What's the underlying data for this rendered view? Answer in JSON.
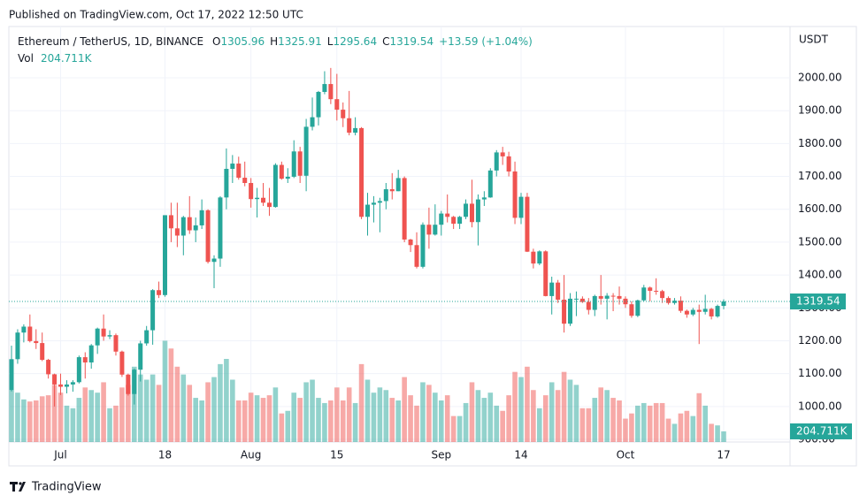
{
  "published": "Published on TradingView.com, Oct 17, 2022 12:50 UTC",
  "brand": "TradingView",
  "chart_data": {
    "type": "candlestick",
    "symbol": "Ethereum / TetherUS, 1D, BINANCE",
    "ohlc_letters": [
      "O",
      "H",
      "L",
      "C"
    ],
    "change_label": "+13.59 (+1.04%)",
    "volume_title": "Vol",
    "volume_label": "204.711K",
    "currency": "USDT",
    "up_color": "#26a69a",
    "down_color": "#ef5350",
    "dates": [
      "2022-06-23",
      "2022-06-24",
      "2022-06-25",
      "2022-06-26",
      "2022-06-27",
      "2022-06-28",
      "2022-06-29",
      "2022-06-30",
      "2022-07-01",
      "2022-07-02",
      "2022-07-03",
      "2022-07-04",
      "2022-07-05",
      "2022-07-06",
      "2022-07-07",
      "2022-07-08",
      "2022-07-09",
      "2022-07-10",
      "2022-07-11",
      "2022-07-12",
      "2022-07-13",
      "2022-07-14",
      "2022-07-15",
      "2022-07-16",
      "2022-07-17",
      "2022-07-18",
      "2022-07-19",
      "2022-07-20",
      "2022-07-21",
      "2022-07-22",
      "2022-07-23",
      "2022-07-24",
      "2022-07-25",
      "2022-07-26",
      "2022-07-27",
      "2022-07-28",
      "2022-07-29",
      "2022-07-30",
      "2022-07-31",
      "2022-08-01",
      "2022-08-02",
      "2022-08-03",
      "2022-08-04",
      "2022-08-05",
      "2022-08-06",
      "2022-08-07",
      "2022-08-08",
      "2022-08-09",
      "2022-08-10",
      "2022-08-11",
      "2022-08-12",
      "2022-08-13",
      "2022-08-14",
      "2022-08-15",
      "2022-08-16",
      "2022-08-17",
      "2022-08-18",
      "2022-08-19",
      "2022-08-20",
      "2022-08-21",
      "2022-08-22",
      "2022-08-23",
      "2022-08-24",
      "2022-08-25",
      "2022-08-26",
      "2022-08-27",
      "2022-08-28",
      "2022-08-29",
      "2022-08-30",
      "2022-08-31",
      "2022-09-01",
      "2022-09-02",
      "2022-09-03",
      "2022-09-04",
      "2022-09-05",
      "2022-09-06",
      "2022-09-07",
      "2022-09-08",
      "2022-09-09",
      "2022-09-10",
      "2022-09-11",
      "2022-09-12",
      "2022-09-13",
      "2022-09-14",
      "2022-09-15",
      "2022-09-16",
      "2022-09-17",
      "2022-09-18",
      "2022-09-19",
      "2022-09-20",
      "2022-09-21",
      "2022-09-22",
      "2022-09-23",
      "2022-09-24",
      "2022-09-25",
      "2022-09-26",
      "2022-09-27",
      "2022-09-28",
      "2022-09-29",
      "2022-09-30",
      "2022-10-01",
      "2022-10-02",
      "2022-10-03",
      "2022-10-04",
      "2022-10-05",
      "2022-10-06",
      "2022-10-07",
      "2022-10-08",
      "2022-10-09",
      "2022-10-10",
      "2022-10-11",
      "2022-10-12",
      "2022-10-13",
      "2022-10-14",
      "2022-10-15",
      "2022-10-16",
      "2022-10-17"
    ],
    "open": [
      1050,
      1144,
      1225,
      1243,
      1199,
      1193,
      1142,
      1098,
      1067,
      1060,
      1067,
      1074,
      1150,
      1134,
      1186,
      1237,
      1213,
      1217,
      1167,
      1097,
      1038,
      1112,
      1192,
      1232,
      1354,
      1339,
      1582,
      1542,
      1520,
      1576,
      1536,
      1551,
      1597,
      1440,
      1450,
      1636,
      1723,
      1739,
      1696,
      1680,
      1631,
      1635,
      1620,
      1607,
      1735,
      1693,
      1699,
      1776,
      1702,
      1851,
      1880,
      1957,
      1981,
      1935,
      1903,
      1877,
      1833,
      1847,
      1577,
      1614,
      1620,
      1625,
      1661,
      1655,
      1695,
      1508,
      1491,
      1425,
      1553,
      1523,
      1553,
      1587,
      1577,
      1556,
      1577,
      1617,
      1561,
      1630,
      1636,
      1718,
      1773,
      1761,
      1715,
      1574,
      1638,
      1471,
      1435,
      1472,
      1336,
      1377,
      1325,
      1252,
      1328,
      1328,
      1318,
      1294,
      1336,
      1328,
      1337,
      1336,
      1328,
      1311,
      1276,
      1323,
      1362,
      1352,
      1351,
      1330,
      1315,
      1322,
      1291,
      1280,
      1294,
      1288,
      1297,
      1274,
      1305.96
    ],
    "high": [
      1185,
      1235,
      1250,
      1280,
      1235,
      1225,
      1145,
      1100,
      1100,
      1080,
      1080,
      1155,
      1165,
      1190,
      1240,
      1280,
      1232,
      1222,
      1170,
      1100,
      1115,
      1200,
      1245,
      1357,
      1380,
      1582,
      1620,
      1620,
      1580,
      1640,
      1575,
      1630,
      1600,
      1460,
      1640,
      1785,
      1765,
      1760,
      1745,
      1695,
      1665,
      1680,
      1665,
      1740,
      1745,
      1725,
      1810,
      1790,
      1875,
      1940,
      1960,
      2020,
      2030,
      2012,
      1925,
      1960,
      1880,
      1850,
      1650,
      1640,
      1635,
      1680,
      1710,
      1720,
      1700,
      1510,
      1530,
      1560,
      1605,
      1615,
      1595,
      1645,
      1580,
      1580,
      1630,
      1690,
      1645,
      1655,
      1725,
      1780,
      1790,
      1775,
      1745,
      1650,
      1650,
      1480,
      1475,
      1475,
      1395,
      1385,
      1400,
      1345,
      1350,
      1335,
      1330,
      1340,
      1400,
      1345,
      1345,
      1365,
      1335,
      1320,
      1325,
      1370,
      1365,
      1390,
      1355,
      1335,
      1330,
      1335,
      1295,
      1300,
      1310,
      1340,
      1300,
      1310,
      1325.91
    ],
    "low": [
      1046,
      1130,
      1195,
      1195,
      1175,
      1138,
      1085,
      1000,
      1035,
      1040,
      1045,
      1070,
      1085,
      1115,
      1160,
      1200,
      1205,
      1155,
      1090,
      1033,
      1006,
      1076,
      1185,
      1188,
      1330,
      1334,
      1500,
      1485,
      1460,
      1525,
      1500,
      1540,
      1435,
      1360,
      1425,
      1600,
      1680,
      1690,
      1670,
      1605,
      1575,
      1610,
      1580,
      1605,
      1690,
      1680,
      1695,
      1680,
      1655,
      1840,
      1855,
      1950,
      1920,
      1870,
      1850,
      1825,
      1825,
      1570,
      1520,
      1560,
      1530,
      1600,
      1630,
      1655,
      1500,
      1470,
      1420,
      1420,
      1480,
      1520,
      1520,
      1560,
      1540,
      1540,
      1570,
      1545,
      1490,
      1610,
      1635,
      1700,
      1735,
      1700,
      1555,
      1555,
      1470,
      1420,
      1430,
      1335,
      1280,
      1315,
      1225,
      1245,
      1275,
      1315,
      1280,
      1275,
      1310,
      1265,
      1290,
      1310,
      1300,
      1270,
      1272,
      1320,
      1320,
      1340,
      1315,
      1310,
      1310,
      1285,
      1270,
      1275,
      1190,
      1280,
      1265,
      1270,
      1295.64
    ],
    "close": [
      1144,
      1225,
      1243,
      1199,
      1193,
      1142,
      1098,
      1067,
      1060,
      1067,
      1074,
      1150,
      1134,
      1186,
      1237,
      1213,
      1217,
      1167,
      1097,
      1038,
      1112,
      1192,
      1232,
      1354,
      1339,
      1582,
      1542,
      1520,
      1576,
      1536,
      1551,
      1597,
      1440,
      1450,
      1636,
      1723,
      1739,
      1696,
      1680,
      1631,
      1635,
      1620,
      1607,
      1735,
      1693,
      1699,
      1776,
      1702,
      1851,
      1880,
      1957,
      1981,
      1935,
      1903,
      1877,
      1833,
      1847,
      1577,
      1614,
      1620,
      1625,
      1661,
      1655,
      1695,
      1508,
      1491,
      1425,
      1553,
      1523,
      1553,
      1587,
      1577,
      1556,
      1577,
      1617,
      1561,
      1630,
      1636,
      1718,
      1773,
      1761,
      1715,
      1574,
      1638,
      1471,
      1435,
      1472,
      1336,
      1377,
      1325,
      1252,
      1328,
      1328,
      1318,
      1294,
      1336,
      1328,
      1337,
      1336,
      1328,
      1311,
      1276,
      1323,
      1362,
      1352,
      1351,
      1330,
      1315,
      1322,
      1291,
      1280,
      1294,
      1288,
      1297,
      1274,
      1305.96,
      1319.54
    ],
    "volume": [
      1000,
      950,
      820,
      780,
      800,
      880,
      900,
      1100,
      950,
      700,
      650,
      850,
      1050,
      1000,
      950,
      1150,
      650,
      700,
      1050,
      1100,
      1450,
      1300,
      1200,
      1300,
      1100,
      1950,
      1800,
      1450,
      1300,
      1100,
      850,
      800,
      1150,
      1250,
      1500,
      1600,
      1200,
      800,
      800,
      950,
      900,
      850,
      900,
      1050,
      550,
      600,
      950,
      850,
      1150,
      1200,
      850,
      750,
      800,
      1050,
      800,
      1050,
      750,
      1500,
      1200,
      950,
      1050,
      1000,
      850,
      800,
      1250,
      900,
      700,
      1150,
      1100,
      950,
      800,
      900,
      500,
      500,
      750,
      1150,
      1000,
      850,
      950,
      700,
      600,
      900,
      1350,
      1250,
      1450,
      1000,
      650,
      900,
      1150,
      1000,
      1350,
      1200,
      1100,
      650,
      650,
      850,
      1050,
      1000,
      850,
      800,
      450,
      550,
      700,
      750,
      700,
      750,
      750,
      450,
      350,
      550,
      600,
      500,
      940,
      700,
      350,
      320,
      204.711
    ],
    "volume_lim": [
      0,
      8000
    ],
    "ylim": [
      892,
      2156
    ],
    "yticks": [
      {
        "value": 900,
        "label": "900.00"
      },
      {
        "value": 1000,
        "label": "1000.00"
      },
      {
        "value": 1100,
        "label": "1100.00"
      },
      {
        "value": 1200,
        "label": "1200.00"
      },
      {
        "value": 1300,
        "label": "1300.00"
      },
      {
        "value": 1400,
        "label": "1400.00"
      },
      {
        "value": 1500,
        "label": "1500.00"
      },
      {
        "value": 1600,
        "label": "1600.00"
      },
      {
        "value": 1700,
        "label": "1700.00"
      },
      {
        "value": 1800,
        "label": "1800.00"
      },
      {
        "value": 1900,
        "label": "1900.00"
      },
      {
        "value": 2000,
        "label": "2000.00"
      }
    ],
    "xticks": [
      {
        "value": "2022-07-01",
        "label": "Jul"
      },
      {
        "value": "2022-07-18",
        "label": "18"
      },
      {
        "value": "2022-08-01",
        "label": "Aug"
      },
      {
        "value": "2022-08-15",
        "label": "15"
      },
      {
        "value": "2022-09-01",
        "label": "Sep"
      },
      {
        "value": "2022-09-14",
        "label": "14"
      },
      {
        "value": "2022-10-01",
        "label": "Oct"
      },
      {
        "value": "2022-10-17",
        "label": "17"
      }
    ],
    "grid": true
  }
}
